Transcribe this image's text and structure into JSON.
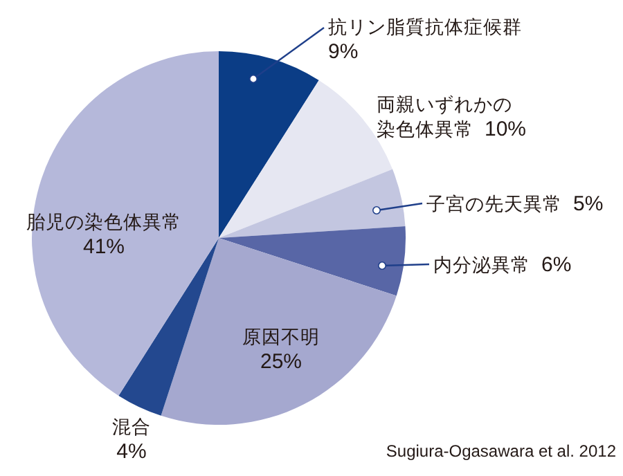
{
  "chart_data": {
    "type": "pie",
    "categories": [
      "抗リン脂質抗体症候群",
      "両親いずれかの染色体異常",
      "子宮の先天異常",
      "内分泌異常",
      "原因不明",
      "混合",
      "胎児の染色体異常"
    ],
    "values": [
      9,
      10,
      5,
      6,
      25,
      4,
      41
    ],
    "colors": [
      "#0b3d86",
      "#e6e7f2",
      "#c3c6e0",
      "#5866a6",
      "#a5a8cf",
      "#23488f",
      "#b5b8da"
    ],
    "value_labels": [
      "9%",
      "10%",
      "5%",
      "6%",
      "25%",
      "4%",
      "41%"
    ],
    "annotations": [
      "Sugiura-Ogasawara et al. 2012"
    ]
  }
}
